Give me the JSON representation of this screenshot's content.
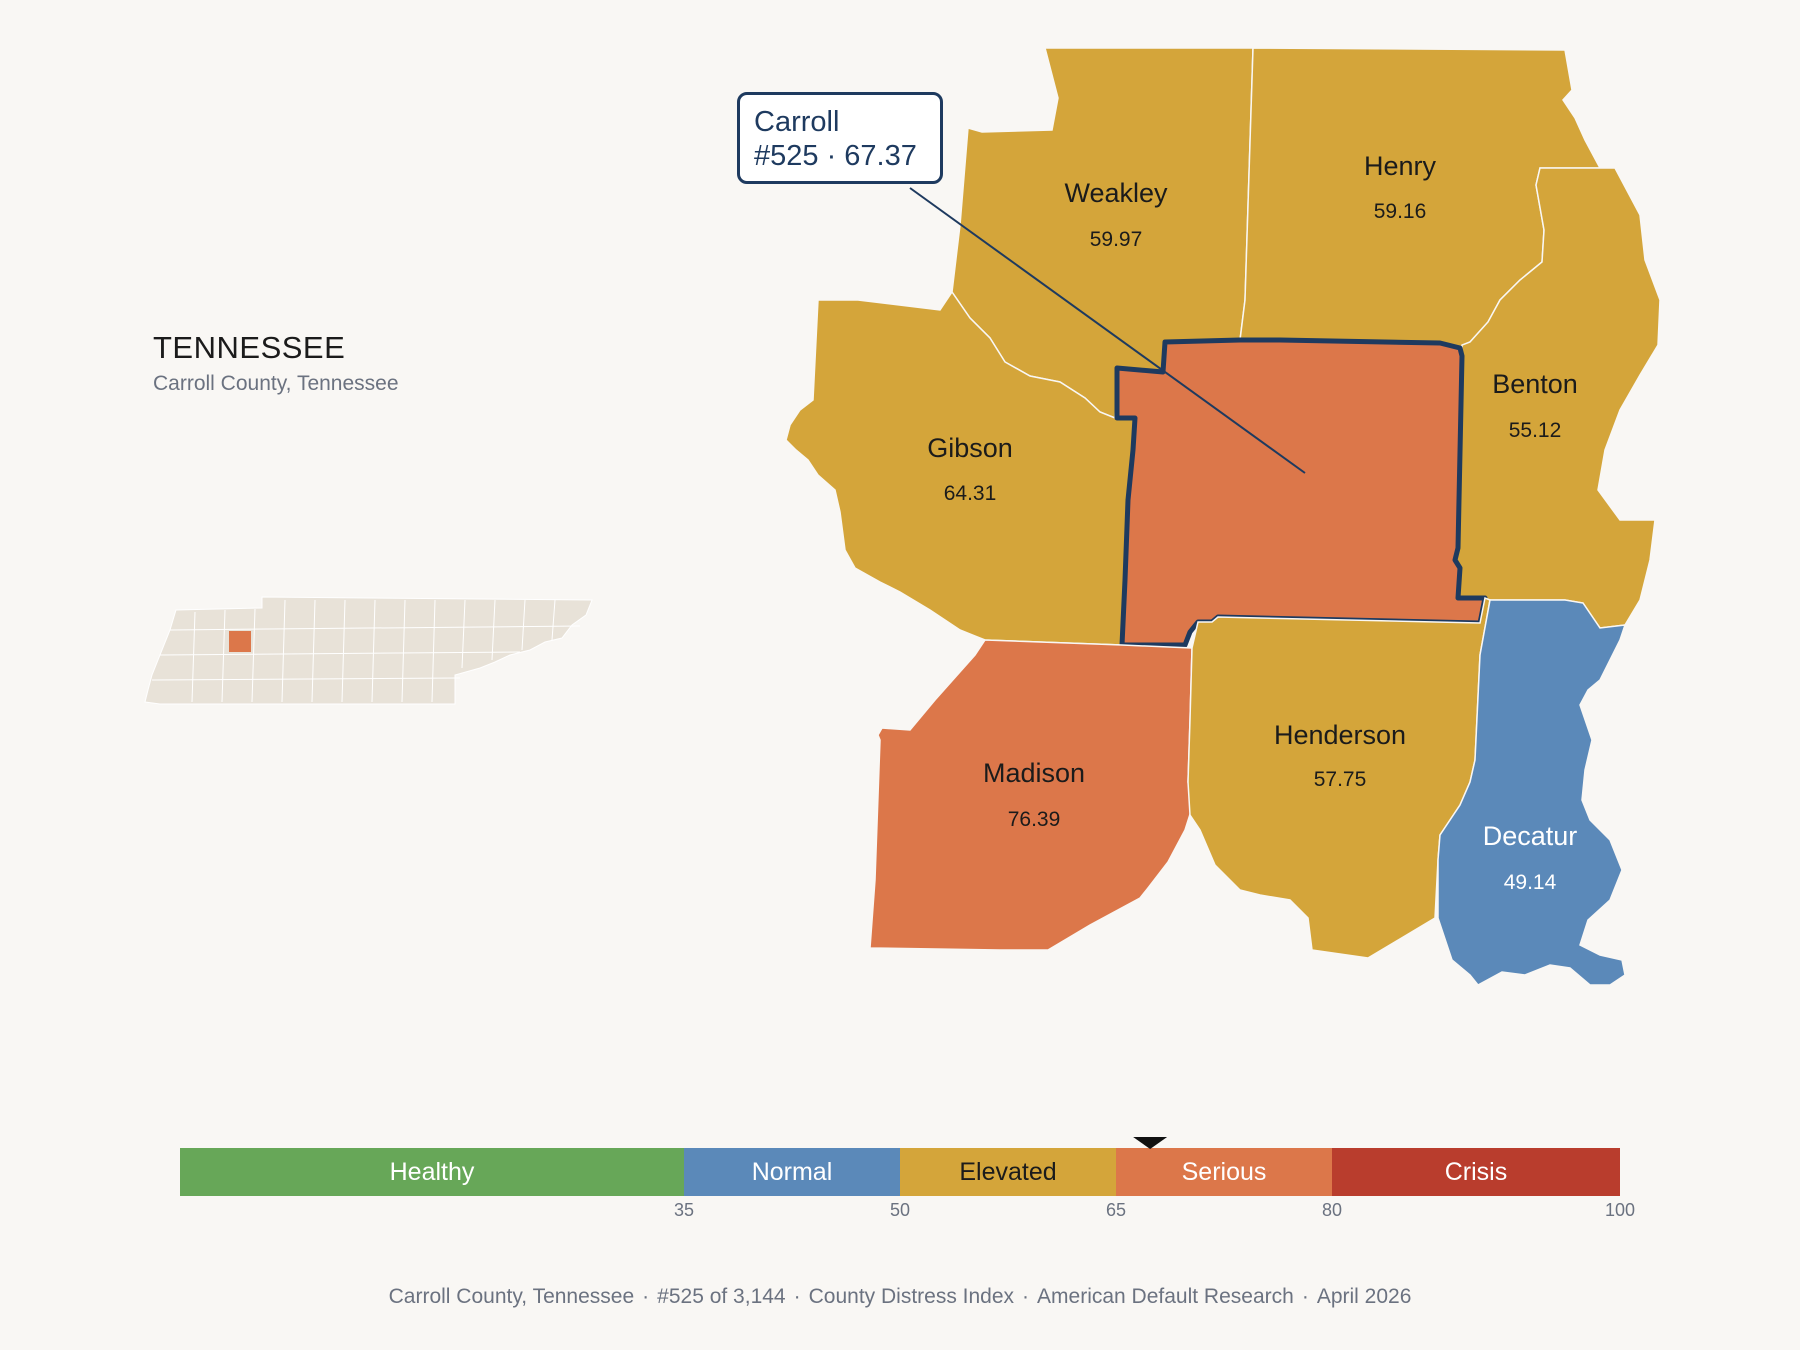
{
  "header": {
    "state": "TENNESSEE",
    "subtitle": "Carroll County, Tennessee"
  },
  "callout": {
    "county": "Carroll",
    "detail": "#525 · 67.37"
  },
  "colors": {
    "healthy": "#67a758",
    "normal": "#5b89b9",
    "elevated": "#d4a53a",
    "serious": "#dc774a",
    "crisis": "#b93d2d",
    "highlight_outline": "#1e3a5f",
    "inset_fill": "#e8e2d8"
  },
  "counties": [
    {
      "name": "Weakley",
      "value": "59.97",
      "band": "elevated"
    },
    {
      "name": "Henry",
      "value": "59.16",
      "band": "elevated"
    },
    {
      "name": "Benton",
      "value": "55.12",
      "band": "elevated"
    },
    {
      "name": "Gibson",
      "value": "64.31",
      "band": "elevated"
    },
    {
      "name": "Carroll",
      "value": "67.37",
      "band": "serious"
    },
    {
      "name": "Madison",
      "value": "76.39",
      "band": "serious"
    },
    {
      "name": "Henderson",
      "value": "57.75",
      "band": "elevated"
    },
    {
      "name": "Decatur",
      "value": "49.14",
      "band": "normal"
    }
  ],
  "scale": {
    "bands": [
      {
        "label": "Healthy",
        "from": 0,
        "to": 35,
        "color": "healthy"
      },
      {
        "label": "Normal",
        "from": 35,
        "to": 50,
        "color": "normal"
      },
      {
        "label": "Elevated",
        "from": 50,
        "to": 65,
        "color": "elevated"
      },
      {
        "label": "Serious",
        "from": 65,
        "to": 80,
        "color": "serious"
      },
      {
        "label": "Crisis",
        "from": 80,
        "to": 100,
        "color": "crisis"
      }
    ],
    "ticks": [
      "35",
      "50",
      "65",
      "80",
      "100"
    ],
    "marker_value": 67.37
  },
  "footer": {
    "county": "Carroll County, Tennessee",
    "rank": "#525 of 3,144",
    "index": "County Distress Index",
    "source": "American Default Research",
    "date": "April 2026"
  }
}
